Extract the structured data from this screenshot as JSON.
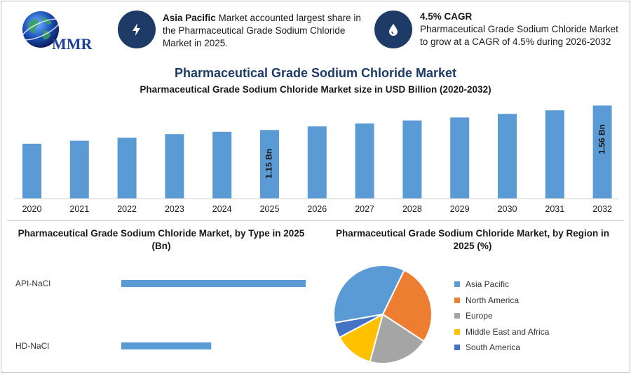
{
  "logo": {
    "text": "MMR",
    "icon": "globe-icon"
  },
  "info_cards": [
    {
      "icon": "lightning-icon",
      "bold": "Asia Pacific",
      "text": " Market accounted largest share in the Pharmaceutical Grade Sodium Chloride Market in 2025."
    },
    {
      "icon": "drop-icon",
      "bold": "4.5% CAGR",
      "text": "Pharmaceutical Grade Sodium Chloride Market to grow at a CAGR of 4.5% during 2026-2032"
    }
  ],
  "title": "Pharmaceutical Grade Sodium Chloride Market",
  "subtitle": "Pharmaceutical Grade Sodium Chloride Market size in USD Billion (2020-2032)",
  "type_title": "Pharmaceutical Grade Sodium Chloride Market, by Type in 2025 (Bn)",
  "region_title": "Pharmaceutical Grade Sodium Chloride Market, by Region in 2025 (%)",
  "colors": {
    "bar": "#5b9bd5",
    "navy": "#1d3b66"
  },
  "chart_data": [
    {
      "type": "bar",
      "title": "Pharmaceutical Grade Sodium Chloride Market size in USD Billion (2020-2032)",
      "categories": [
        "2020",
        "2021",
        "2022",
        "2023",
        "2024",
        "2025",
        "2026",
        "2027",
        "2028",
        "2029",
        "2030",
        "2031",
        "2032"
      ],
      "values": [
        0.92,
        0.97,
        1.02,
        1.08,
        1.12,
        1.15,
        1.21,
        1.26,
        1.31,
        1.36,
        1.42,
        1.48,
        1.56
      ],
      "data_labels": {
        "2025": "1.15 Bn",
        "2032": "1.56 Bn"
      },
      "ylim": [
        0,
        1.6
      ],
      "grid": false
    },
    {
      "type": "bar",
      "orientation": "horizontal",
      "title": "Pharmaceutical Grade Sodium Chloride Market, by Type in 2025 (Bn)",
      "categories": [
        "API-NaCl",
        "HD-NaCl"
      ],
      "values": [
        0.78,
        0.38
      ],
      "xlim": [
        0,
        0.8
      ],
      "grid": false
    },
    {
      "type": "pie",
      "title": "Pharmaceutical Grade Sodium Chloride Market, by Region in 2025 (%)",
      "categories": [
        "Asia Pacific",
        "North America",
        "Europe",
        "Middle East and Africa",
        "South America"
      ],
      "values": [
        35,
        27,
        20,
        13,
        5
      ],
      "colors": [
        "#5b9bd5",
        "#ed7d31",
        "#a5a5a5",
        "#ffc000",
        "#4472c4"
      ],
      "legend": "right"
    }
  ]
}
